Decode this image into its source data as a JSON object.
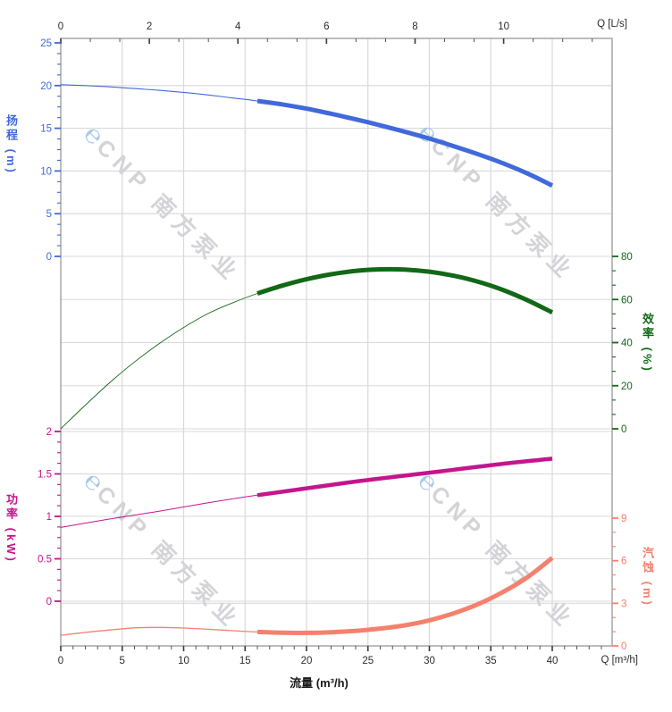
{
  "watermark": {
    "logo_glyph": "℮",
    "text": "CNP 南方泵业"
  },
  "chart_data": {
    "type": "line",
    "title": "",
    "x_bottom": {
      "title": "流量 (m³/h)",
      "corner_label": "Q [m³/h]",
      "major_ticks": [
        0,
        5,
        10,
        15,
        20,
        25,
        30,
        35,
        40
      ],
      "minor_step": 1
    },
    "x_top": {
      "corner_label": "Q [L/s]",
      "major_ticks": [
        0,
        2,
        4,
        6,
        8,
        10
      ],
      "minor_per_major": 3
    },
    "y_axes": [
      {
        "id": "head",
        "title": "扬程 (m)",
        "side": "left",
        "color": "#3f6ad8",
        "major_ticks": [
          25,
          20,
          15,
          10,
          5,
          0
        ],
        "minor_per_major": 4,
        "gridline_values": [
          20,
          15,
          10,
          5,
          0
        ]
      },
      {
        "id": "efficiency",
        "title": "效率 (%)",
        "side": "right",
        "color": "#126816",
        "major_ticks": [
          80,
          60,
          40,
          20,
          0
        ],
        "minor_per_major": 3,
        "gridline_values": [
          60,
          40,
          20,
          0
        ]
      },
      {
        "id": "power",
        "title": "功率 (kW)",
        "side": "left",
        "color": "#c5158c",
        "major_ticks": [
          2,
          1.5,
          1,
          0.5,
          0
        ],
        "minor_per_major": 4,
        "gridline_values": [
          2,
          1.5,
          1,
          0.5,
          0
        ]
      },
      {
        "id": "npsh",
        "title": "汽蚀 (m)",
        "side": "right",
        "color": "#f4816d",
        "major_ticks": [
          9,
          6,
          3,
          0
        ],
        "minor_per_major": 3,
        "gridline_values": [
          3
        ]
      }
    ],
    "duty_range_q_m3h": [
      16,
      40
    ],
    "series": [
      {
        "name": "扬程",
        "axis": "head",
        "color": "#4169db",
        "thin_width": 1.1,
        "thick_width": 5,
        "thick_from_q": 16,
        "q": [
          0,
          2,
          4,
          6,
          8,
          10,
          12,
          14,
          16,
          18,
          20,
          22,
          24,
          26,
          28,
          30,
          32,
          34,
          36,
          38,
          40
        ],
        "values": [
          20.1,
          20.0,
          19.85,
          19.65,
          19.45,
          19.2,
          18.9,
          18.55,
          18.2,
          17.8,
          17.3,
          16.7,
          16.05,
          15.35,
          14.6,
          13.8,
          12.9,
          11.95,
          10.9,
          9.7,
          8.3
        ]
      },
      {
        "name": "效率",
        "axis": "efficiency",
        "color": "#126816",
        "thin_width": 0.9,
        "thick_width": 5,
        "thick_from_q": 16,
        "q": [
          0,
          2,
          4,
          6,
          8,
          10,
          12,
          14,
          16,
          18,
          20,
          22,
          24,
          26,
          28,
          30,
          32,
          34,
          36,
          38,
          40
        ],
        "values": [
          0,
          11,
          21.5,
          31,
          39.5,
          47,
          53.5,
          58.5,
          62.8,
          66.4,
          69.4,
          71.7,
          73.3,
          74,
          73.9,
          72.9,
          71,
          68.2,
          64.4,
          59.6,
          54
        ]
      },
      {
        "name": "功率",
        "axis": "power",
        "color": "#c5158c",
        "thin_width": 1.0,
        "thick_width": 4.5,
        "thick_from_q": 16,
        "q": [
          0,
          4,
          8,
          12,
          16,
          20,
          24,
          28,
          32,
          36,
          40
        ],
        "values": [
          0.87,
          0.97,
          1.06,
          1.16,
          1.25,
          1.33,
          1.41,
          1.48,
          1.55,
          1.62,
          1.68
        ]
      },
      {
        "name": "汽蚀",
        "axis": "npsh",
        "color": "#f4816d",
        "thin_width": 1.3,
        "thick_width": 5,
        "thick_from_q": 16,
        "q": [
          0,
          2,
          4,
          6,
          8,
          10,
          12,
          14,
          16,
          18,
          20,
          22,
          24,
          26,
          28,
          30,
          32,
          34,
          36,
          38,
          40
        ],
        "values": [
          0.75,
          0.95,
          1.12,
          1.27,
          1.3,
          1.26,
          1.17,
          1.07,
          0.98,
          0.93,
          0.92,
          0.96,
          1.06,
          1.22,
          1.45,
          1.8,
          2.3,
          2.95,
          3.8,
          4.85,
          6.2
        ]
      }
    ]
  }
}
